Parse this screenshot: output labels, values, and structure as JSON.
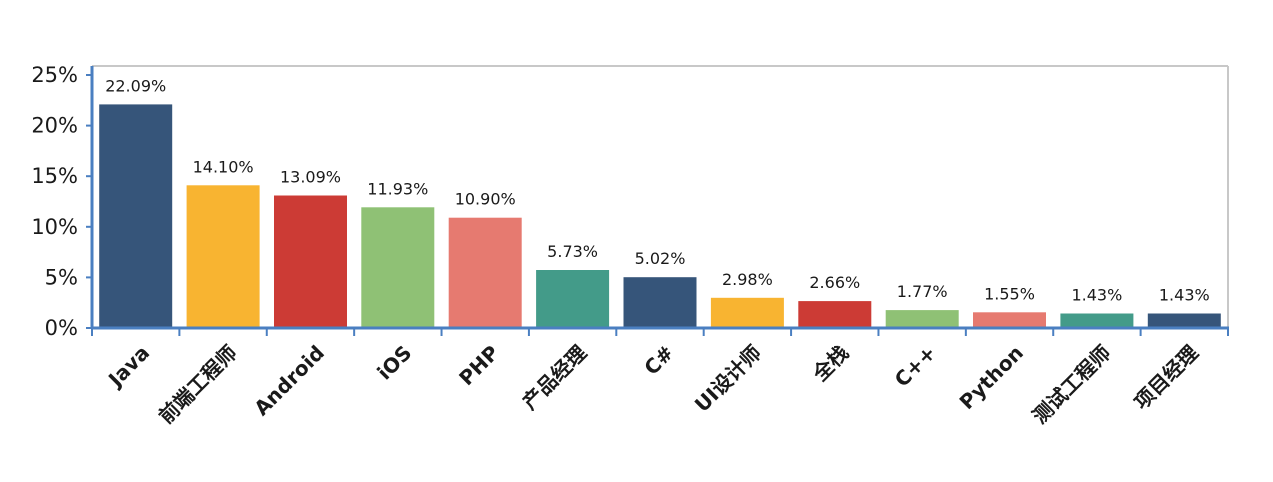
{
  "chart_data": {
    "type": "bar",
    "title": "",
    "xlabel": "",
    "ylabel": "",
    "ylim": [
      0,
      25
    ],
    "yticks": [
      0,
      5,
      10,
      15,
      20,
      25
    ],
    "ytick_labels": [
      "0%",
      "5%",
      "10%",
      "15%",
      "20%",
      "25%"
    ],
    "grid": false,
    "legend": "none",
    "categories": [
      "Java",
      "前端工程师",
      "Android",
      "iOS",
      "PHP",
      "产品经理",
      "C#",
      "UI设计师",
      "全栈",
      "C++",
      "Python",
      "测试工程师",
      "项目经理"
    ],
    "values": [
      22.09,
      14.1,
      13.09,
      11.93,
      10.9,
      5.73,
      5.02,
      2.98,
      2.66,
      1.77,
      1.55,
      1.43,
      1.43
    ],
    "value_labels": [
      "22.09%",
      "14.10%",
      "13.09%",
      "11.93%",
      "10.90%",
      "5.73%",
      "5.02%",
      "2.98%",
      "2.66%",
      "1.77%",
      "1.55%",
      "1.43%",
      "1.43%"
    ],
    "bar_colors": [
      "#36557a",
      "#f8b431",
      "#cc3b35",
      "#8fc175",
      "#e67a70",
      "#439b89",
      "#36557a",
      "#f8b431",
      "#cc3b35",
      "#8fc175",
      "#e67a70",
      "#439b89",
      "#36557a"
    ],
    "axis_color": "#4a7fc1",
    "frame_color": "#c8c8c8"
  }
}
